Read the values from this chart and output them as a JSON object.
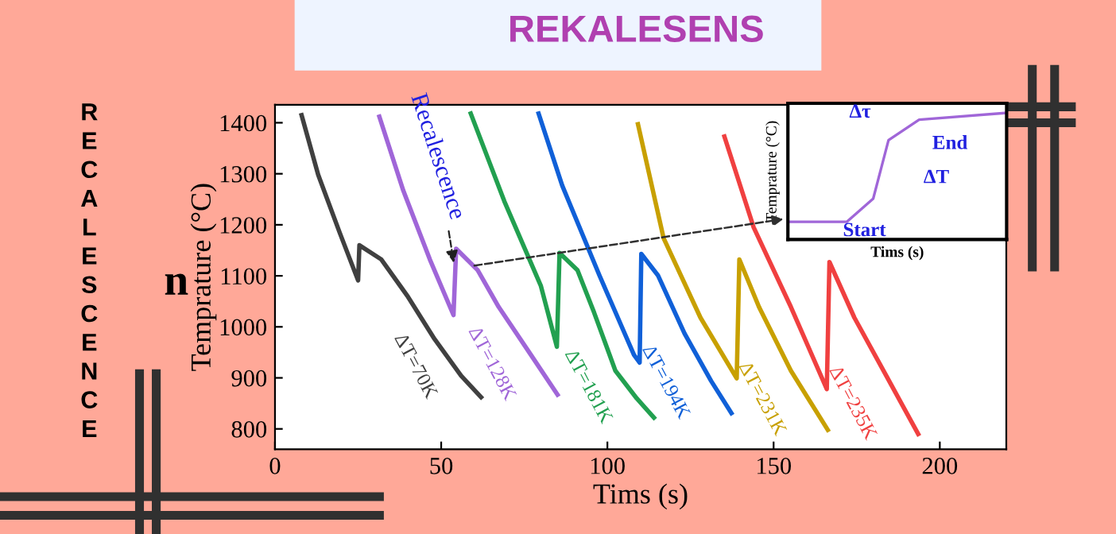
{
  "chart_data": {
    "type": "line",
    "title": "REKALESENS",
    "subtitle": "RECALESCENCE",
    "xlabel": "Tims (s)",
    "ylabel": "Temprature (°C)",
    "xlim": [
      0,
      220
    ],
    "ylim": [
      760,
      1435
    ],
    "xticks": [
      0,
      50,
      100,
      150,
      200
    ],
    "yticks": [
      800,
      900,
      1000,
      1100,
      1200,
      1300,
      1400
    ],
    "grid": false,
    "legend": false,
    "marker": "none",
    "line_style": "solid",
    "annotations": [
      {
        "text": "Recalescence",
        "x": 54,
        "y": 1117
      },
      "n",
      "Δτ",
      "End",
      "ΔT",
      "Start",
      "Tims (s)",
      "Temprature (°C)"
    ],
    "series": [
      {
        "name": "ΔT=70K",
        "color": "#404040",
        "x": [
          8,
          13,
          19.5,
          25,
          25.4,
          32,
          40,
          48,
          56,
          62
        ],
        "values": [
          1415,
          1298,
          1184,
          1091,
          1160,
          1132,
          1059,
          976,
          904,
          862
        ]
      },
      {
        "name": "ΔT=128K",
        "color": "#a066d8",
        "x": [
          31.4,
          38.6,
          46.6,
          53.7,
          54.5,
          61,
          67.3,
          77,
          85
        ],
        "values": [
          1412,
          1267,
          1132,
          1023,
          1153,
          1111,
          1039,
          945,
          867
        ]
      },
      {
        "name": "ΔT=181K",
        "color": "#22a050",
        "x": [
          58.9,
          69,
          80,
          84.8,
          85.6,
          91,
          96,
          102.4,
          108.8,
          114
        ],
        "values": [
          1418,
          1246,
          1080,
          961,
          1145,
          1111,
          1028,
          914,
          860,
          822
        ]
      },
      {
        "name": "ΔT=194K",
        "color": "#1060d8",
        "x": [
          79.3,
          86.4,
          97.6,
          108,
          109.7,
          110.2,
          115.2,
          123.2,
          131.2,
          137.3
        ],
        "values": [
          1418,
          1277,
          1101,
          945,
          930,
          1143,
          1101,
          987,
          894,
          831
        ]
      },
      {
        "name": "ΔT=231K",
        "color": "#c8a000",
        "x": [
          109.2,
          116.9,
          128,
          138.9,
          139.7,
          145.6,
          155.2,
          166.3
        ],
        "values": [
          1397,
          1174,
          1018,
          899,
          1132,
          1039,
          914,
          798
        ]
      },
      {
        "name": "ΔT=235K",
        "color": "#f04040",
        "x": [
          135.2,
          144,
          155.2,
          166,
          166.8,
          174.3,
          183.9,
          193.5
        ],
        "values": [
          1373,
          1195,
          1039,
          878,
          1127,
          1018,
          904,
          790
        ]
      }
    ]
  }
}
